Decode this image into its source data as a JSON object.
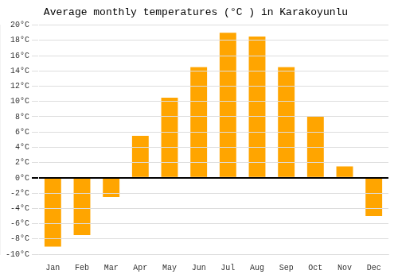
{
  "chart_data": {
    "type": "bar",
    "title": "Average monthly temperatures (°C ) in Karakoyunlu",
    "categories": [
      "Jan",
      "Feb",
      "Mar",
      "Apr",
      "May",
      "Jun",
      "Jul",
      "Aug",
      "Sep",
      "Oct",
      "Nov",
      "Dec"
    ],
    "values": [
      -9,
      -7.5,
      -2.5,
      5.5,
      10.5,
      14.5,
      19,
      18.5,
      14.5,
      8,
      1.5,
      -5
    ],
    "color": "#FFA500",
    "ylim": [
      -10,
      20
    ],
    "yticks": [
      {
        "value": -10,
        "label": "-10°C"
      },
      {
        "value": -8,
        "label": "-8°C"
      },
      {
        "value": -6,
        "label": "-6°C"
      },
      {
        "value": -4,
        "label": "-4°C"
      },
      {
        "value": -2,
        "label": "-2°C"
      },
      {
        "value": 0,
        "label": "0°C"
      },
      {
        "value": 2,
        "label": "2°C"
      },
      {
        "value": 4,
        "label": "4°C"
      },
      {
        "value": 6,
        "label": "6°C"
      },
      {
        "value": 8,
        "label": "8°C"
      },
      {
        "value": 10,
        "label": "10°C"
      },
      {
        "value": 12,
        "label": "12°C"
      },
      {
        "value": 14,
        "label": "14°C"
      },
      {
        "value": 16,
        "label": "16°C"
      },
      {
        "value": 18,
        "label": "18°C"
      },
      {
        "value": 20,
        "label": "20°C"
      }
    ],
    "grid": true
  }
}
